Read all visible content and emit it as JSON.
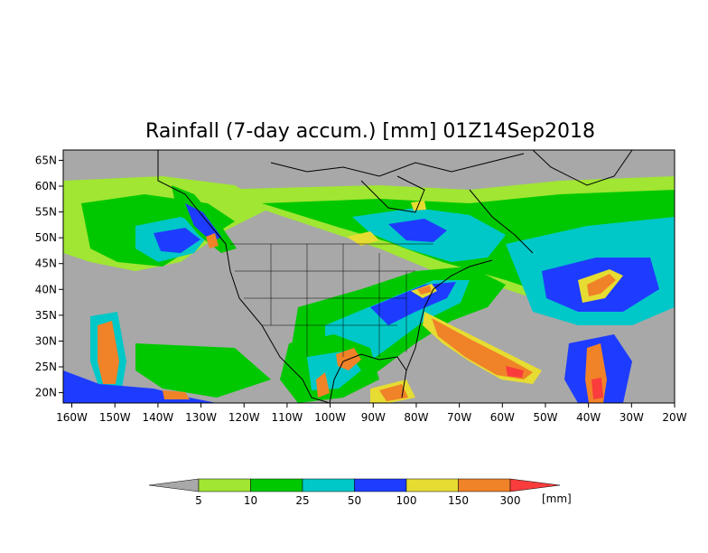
{
  "title": "Rainfall (7-day accum.) [mm] 01Z14Sep2018",
  "map": {
    "lat_labels": [
      "65N",
      "60N",
      "55N",
      "50N",
      "45N",
      "40N",
      "35N",
      "30N",
      "25N",
      "20N"
    ],
    "lon_labels": [
      "160W",
      "150W",
      "140W",
      "130W",
      "120W",
      "110W",
      "100W",
      "90W",
      "80W",
      "70W",
      "60W",
      "50W",
      "40W",
      "30W",
      "20W"
    ],
    "lat_range": [
      18,
      67
    ],
    "lon_range": [
      -162,
      -20
    ],
    "background_color": "#a8a8a8"
  },
  "colorbar": {
    "bin_labels": [
      "5",
      "10",
      "25",
      "50",
      "100",
      "150",
      "300"
    ],
    "unit": "[mm]",
    "colors": [
      "#a8a8a8",
      "#a0e632",
      "#00c800",
      "#00c8c8",
      "#1e3cff",
      "#e6dc32",
      "#f08228",
      "#fa3c3c"
    ]
  }
}
